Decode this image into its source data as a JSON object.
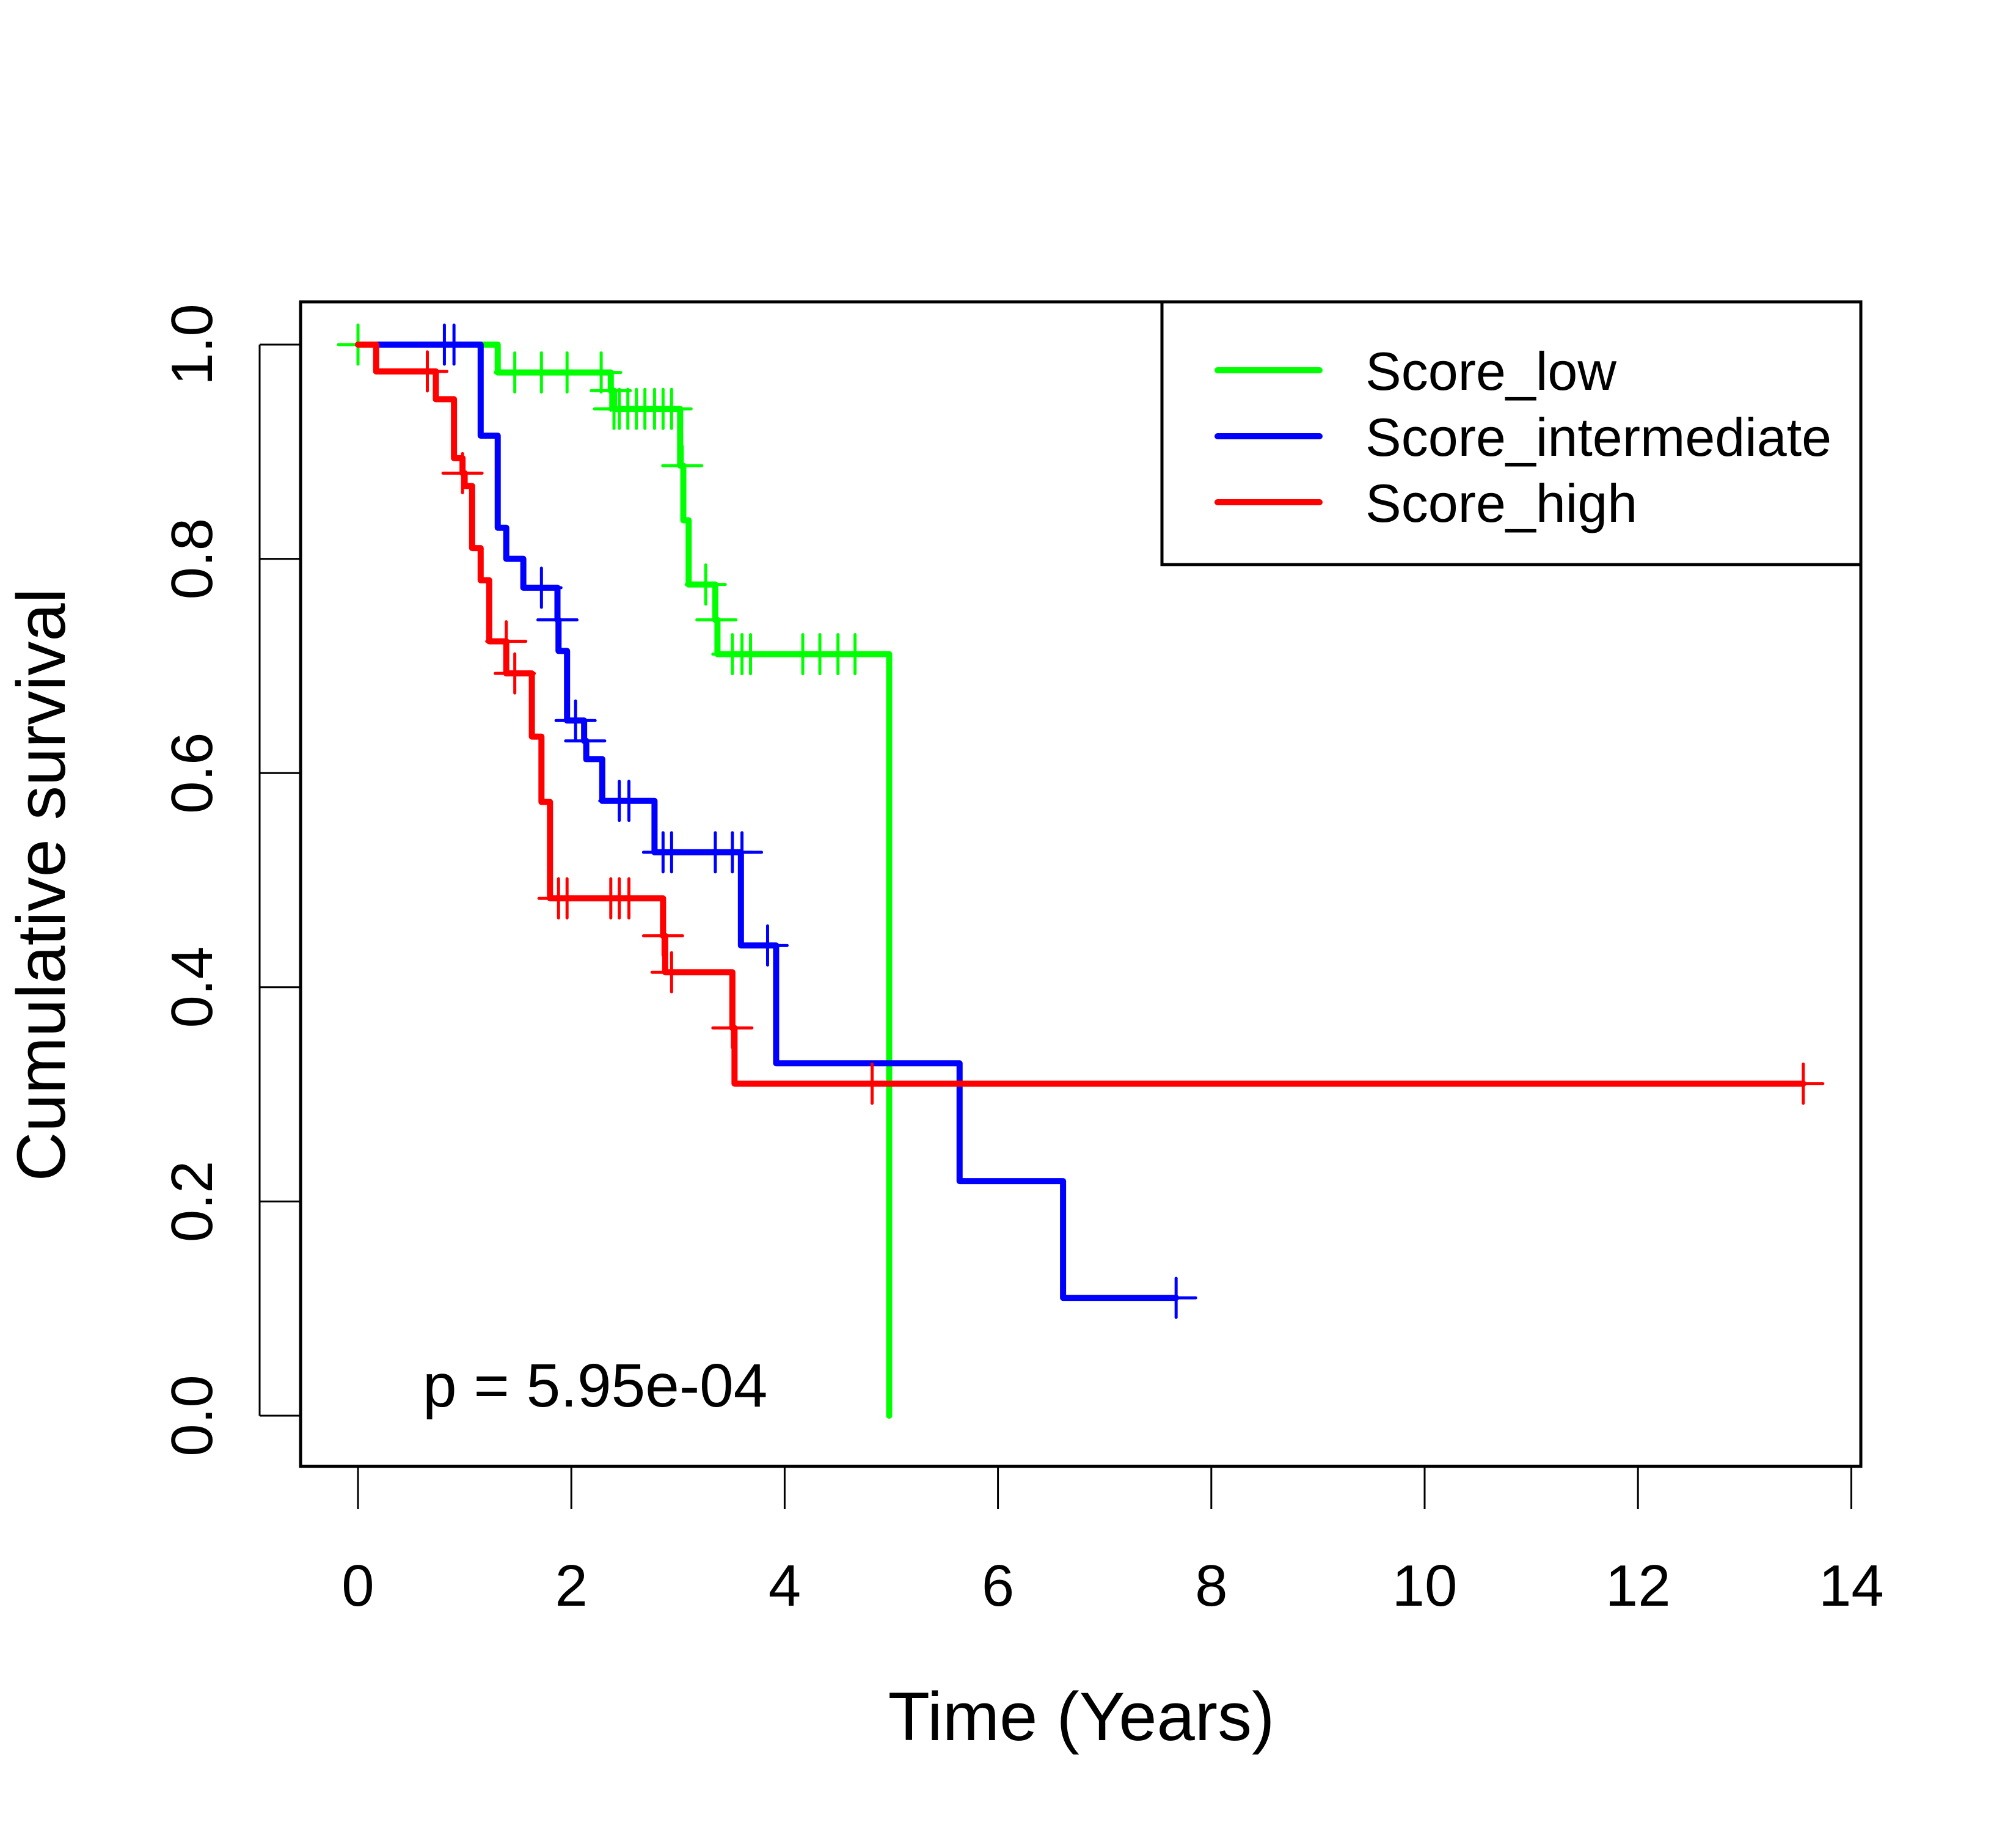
{
  "chart_data": {
    "type": "line",
    "subtype": "kaplan-meier",
    "title": "",
    "xlabel": "Time (Years)",
    "ylabel": "Cumulative survival",
    "xlim": [
      0,
      14
    ],
    "ylim": [
      0,
      1
    ],
    "x_ticks": [
      0,
      2,
      4,
      6,
      8,
      10,
      12,
      14
    ],
    "x_tick_labels": [
      "0",
      "2",
      "4",
      "6",
      "8",
      "10",
      "12",
      "14"
    ],
    "y_ticks": [
      0.0,
      0.2,
      0.4,
      0.6,
      0.8,
      1.0
    ],
    "y_tick_labels": [
      "0.0",
      "0.2",
      "0.4",
      "0.6",
      "0.8",
      "1.0"
    ],
    "grid": false,
    "legend_position": "top-right",
    "annotation": "p = 5.95e-04",
    "series": [
      {
        "name": "Score_low",
        "color": "#00ff00",
        "steps": [
          [
            0,
            1.0
          ],
          [
            1.31,
            0.974
          ],
          [
            2.37,
            0.957
          ],
          [
            2.4,
            0.94
          ],
          [
            3.02,
            0.887
          ],
          [
            3.05,
            0.836
          ],
          [
            3.1,
            0.776
          ],
          [
            3.35,
            0.743
          ],
          [
            3.37,
            0.711
          ],
          [
            4.98,
            0.0
          ]
        ],
        "end_time": 4.98,
        "censors": [
          [
            0.0,
            1.0
          ],
          [
            1.47,
            0.974
          ],
          [
            1.72,
            0.974
          ],
          [
            1.96,
            0.974
          ],
          [
            2.28,
            0.974
          ],
          [
            2.37,
            0.957
          ],
          [
            2.4,
            0.94
          ],
          [
            2.45,
            0.94
          ],
          [
            2.53,
            0.94
          ],
          [
            2.61,
            0.94
          ],
          [
            2.69,
            0.94
          ],
          [
            2.78,
            0.94
          ],
          [
            2.86,
            0.94
          ],
          [
            2.94,
            0.94
          ],
          [
            3.04,
            0.887
          ],
          [
            3.26,
            0.776
          ],
          [
            3.36,
            0.743
          ],
          [
            3.51,
            0.711
          ],
          [
            3.6,
            0.711
          ],
          [
            3.68,
            0.711
          ],
          [
            4.17,
            0.711
          ],
          [
            4.33,
            0.711
          ],
          [
            4.5,
            0.711
          ],
          [
            4.66,
            0.711
          ]
        ]
      },
      {
        "name": "Score_intermediate",
        "color": "#0000ff",
        "steps": [
          [
            0,
            1.0
          ],
          [
            1.15,
            0.915
          ],
          [
            1.31,
            0.829
          ],
          [
            1.39,
            0.8
          ],
          [
            1.55,
            0.773
          ],
          [
            1.87,
            0.743
          ],
          [
            1.88,
            0.714
          ],
          [
            1.96,
            0.649
          ],
          [
            2.12,
            0.63
          ],
          [
            2.14,
            0.613
          ],
          [
            2.29,
            0.574
          ],
          [
            2.78,
            0.526
          ],
          [
            3.59,
            0.439
          ],
          [
            3.92,
            0.329
          ],
          [
            5.64,
            0.219
          ],
          [
            6.61,
            0.11
          ]
        ],
        "end_time": 7.67,
        "censors": [
          [
            0.81,
            1.0
          ],
          [
            0.9,
            1.0
          ],
          [
            1.72,
            0.773
          ],
          [
            1.87,
            0.743
          ],
          [
            2.04,
            0.649
          ],
          [
            2.13,
            0.63
          ],
          [
            2.45,
            0.574
          ],
          [
            2.54,
            0.574
          ],
          [
            2.86,
            0.526
          ],
          [
            2.94,
            0.526
          ],
          [
            3.35,
            0.526
          ],
          [
            3.51,
            0.526
          ],
          [
            3.6,
            0.526
          ],
          [
            3.84,
            0.439
          ],
          [
            7.67,
            0.11
          ]
        ]
      },
      {
        "name": "Score_high",
        "color": "#ff0000",
        "steps": [
          [
            0,
            1.0
          ],
          [
            0.17,
            0.975
          ],
          [
            0.73,
            0.949
          ],
          [
            0.9,
            0.894
          ],
          [
            0.98,
            0.88
          ],
          [
            1.0,
            0.868
          ],
          [
            1.07,
            0.81
          ],
          [
            1.15,
            0.78
          ],
          [
            1.23,
            0.723
          ],
          [
            1.39,
            0.693
          ],
          [
            1.63,
            0.634
          ],
          [
            1.72,
            0.573
          ],
          [
            1.8,
            0.483
          ],
          [
            2.86,
            0.448
          ],
          [
            2.88,
            0.414
          ],
          [
            3.51,
            0.362
          ],
          [
            3.53,
            0.31
          ]
        ],
        "end_time": 13.55,
        "censors": [
          [
            0.65,
            0.975
          ],
          [
            0.98,
            0.88
          ],
          [
            1.47,
            0.693
          ],
          [
            1.39,
            0.723
          ],
          [
            1.88,
            0.483
          ],
          [
            1.96,
            0.483
          ],
          [
            2.37,
            0.483
          ],
          [
            2.45,
            0.483
          ],
          [
            2.54,
            0.483
          ],
          [
            2.86,
            0.448
          ],
          [
            2.94,
            0.414
          ],
          [
            3.51,
            0.362
          ],
          [
            4.82,
            0.31
          ],
          [
            13.55,
            0.31
          ]
        ]
      }
    ]
  }
}
